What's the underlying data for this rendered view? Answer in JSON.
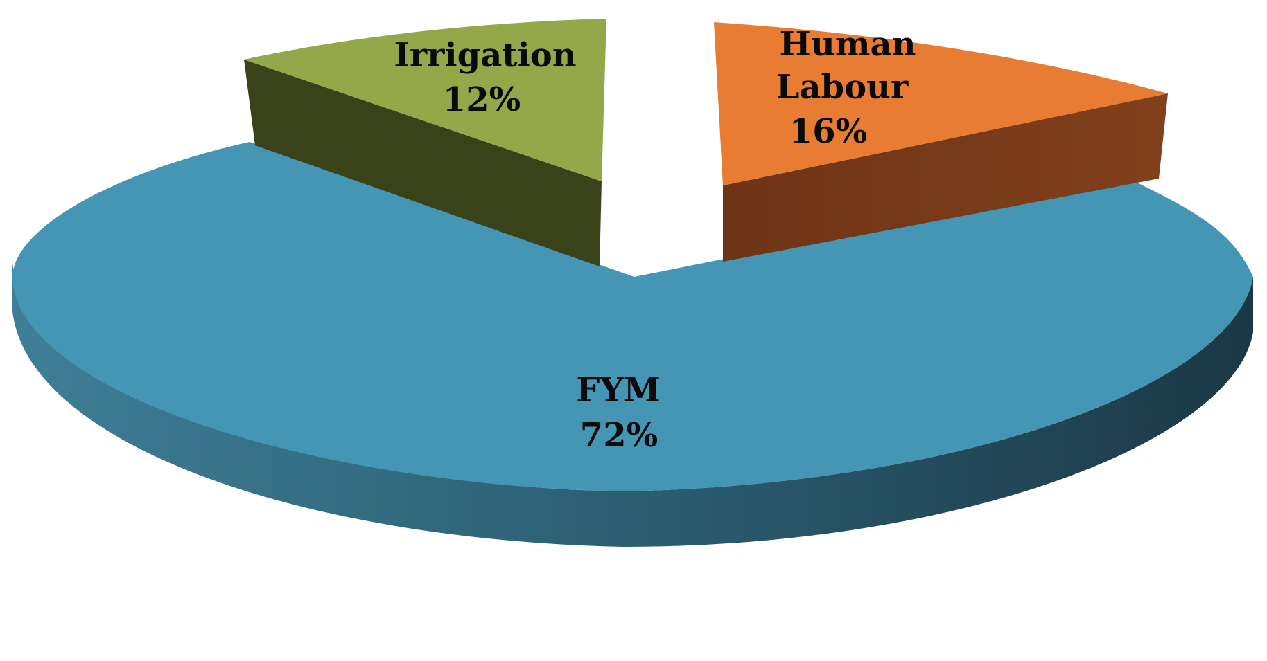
{
  "chart_data": {
    "type": "pie",
    "style": "3d-exploded",
    "slices": [
      {
        "category": "FYM",
        "value": 72,
        "percent_label": "72%",
        "color": "#4596B4",
        "side_color": "#2C6278"
      },
      {
        "category": "Irrigation",
        "value": 12,
        "percent_label": "12%",
        "color": "#94A84A",
        "side_color": "#3A4219"
      },
      {
        "category": "Human Labour",
        "value": 16,
        "percent_label": "16%",
        "color": "#E87C33",
        "side_color": "#7A3A19"
      }
    ]
  }
}
